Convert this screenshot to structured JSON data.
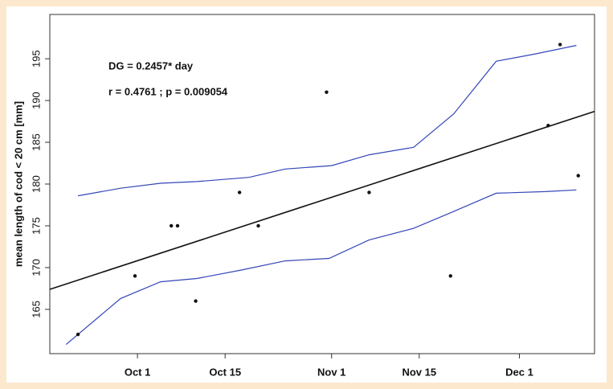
{
  "chart_data": {
    "type": "scatter",
    "ylabel": "mean length of cod < 20 cm [mm]",
    "annotations": [
      "DG = 0.2457* day",
      "r  = 0.4761 ; p = 0.009054"
    ],
    "x": [
      264.5,
      273.6,
      279.4,
      280.4,
      283.3,
      290.3,
      293.3,
      304.2,
      311.0,
      324.0,
      339.6,
      341.5,
      344.4
    ],
    "values": [
      162,
      169,
      175,
      175,
      166,
      179,
      175,
      191,
      179,
      169,
      187,
      196.7,
      181
    ],
    "color": "#111111",
    "series": [
      {
        "color": "#111111",
        "x": [
          260,
          347
        ],
        "values": [
          167.4,
          188.7
        ]
      },
      {
        "color": "#3346b8",
        "x": [
          264.5,
          271.3,
          277.7,
          283.5,
          291.8,
          297.6,
          305.0,
          311.0,
          318.1,
          324.5,
          331.3,
          337.7,
          344.1
        ],
        "values": [
          178.6,
          179.5,
          180.1,
          180.3,
          180.8,
          181.8,
          182.2,
          183.5,
          184.4,
          188.4,
          194.7,
          195.6,
          196.6
        ]
      },
      {
        "color": "#3346b8",
        "x": [
          262.6,
          271.3,
          277.7,
          283.5,
          290.5,
          297.6,
          304.6,
          311.0,
          318.1,
          323.8,
          331.3,
          339.2,
          344.1
        ],
        "values": [
          160.8,
          166.3,
          168.3,
          168.7,
          169.7,
          170.8,
          171.1,
          173.3,
          174.7,
          176.5,
          178.9,
          179.1,
          179.3
        ]
      }
    ],
    "xlim": [
      260,
      347
    ],
    "ylim": [
      159.7,
      200.3
    ],
    "xticks": [
      {
        "value": 274,
        "label": "Oct 1"
      },
      {
        "value": 288,
        "label": "Oct 15"
      },
      {
        "value": 305,
        "label": "Nov 1"
      },
      {
        "value": 319,
        "label": "Nov 15"
      },
      {
        "value": 335,
        "label": "Dec 1"
      }
    ],
    "yticks": [
      165,
      170,
      175,
      180,
      185,
      190,
      195
    ]
  }
}
